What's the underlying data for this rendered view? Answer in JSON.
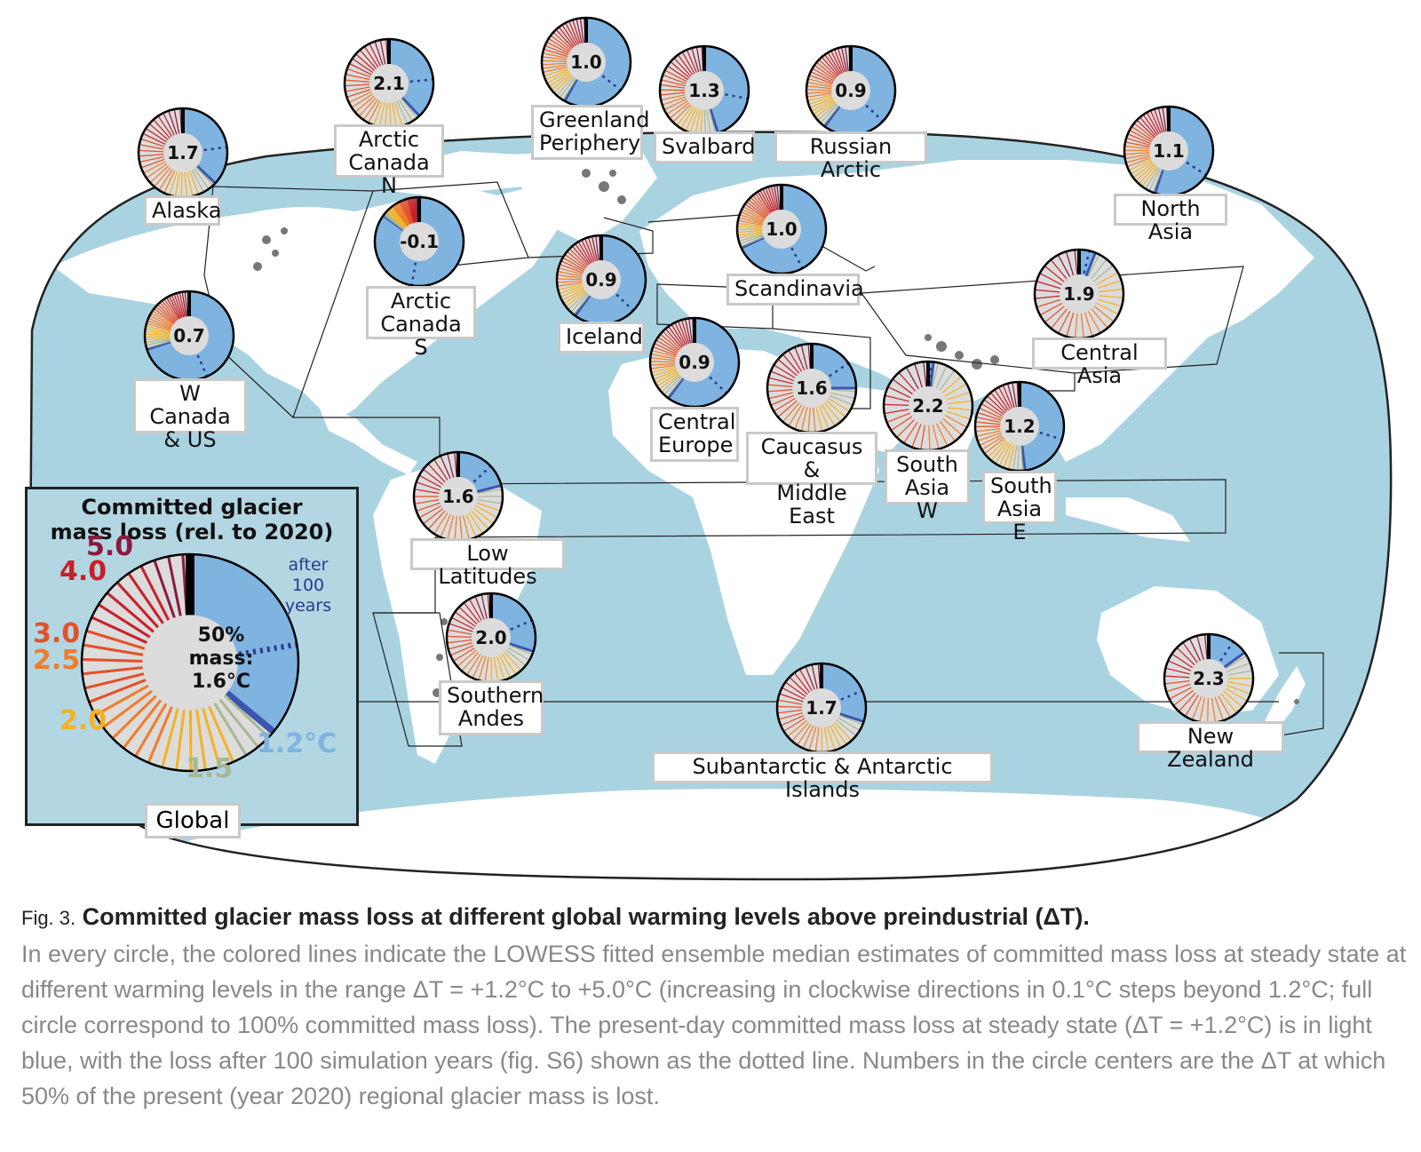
{
  "legend": {
    "title": "Committed glacier\nmass loss (rel. to 2020)",
    "center_text": "50%\nmass:\n1.6°C",
    "after_note": "after\n100\nyears",
    "levels": [
      {
        "label": "5.0",
        "color": "#8b1a3f"
      },
      {
        "label": "4.0",
        "color": "#c8202a"
      },
      {
        "label": "3.0",
        "color": "#e2512a"
      },
      {
        "label": "2.5",
        "color": "#ef7d2b"
      },
      {
        "label": "2.0",
        "color": "#f2b224"
      },
      {
        "label": "1.5",
        "color": "#a8b894"
      },
      {
        "label": "1.2°C",
        "color": "#7fb3e0"
      }
    ],
    "global_label": "Global",
    "global_value": 1.6
  },
  "regions": [
    {
      "name": "Alaska",
      "value": "1.7",
      "committed_1_2C_fraction": 0.37
    },
    {
      "name": "Arctic\nCanada N",
      "value": "2.1",
      "committed_1_2C_fraction": 0.38
    },
    {
      "name": "Greenland\nPeriphery",
      "value": "1.0",
      "committed_1_2C_fraction": 0.58
    },
    {
      "name": "Svalbard",
      "value": "1.3",
      "committed_1_2C_fraction": 0.45
    },
    {
      "name": "Russian Arctic",
      "value": "0.9",
      "committed_1_2C_fraction": 0.6
    },
    {
      "name": "North Asia",
      "value": "1.1",
      "committed_1_2C_fraction": 0.55
    },
    {
      "name": "Arctic\nCanada S",
      "value": "-0.1",
      "committed_1_2C_fraction": 0.85
    },
    {
      "name": "Iceland",
      "value": "0.9",
      "committed_1_2C_fraction": 0.6
    },
    {
      "name": "Scandinavia",
      "value": "1.0",
      "committed_1_2C_fraction": 0.68
    },
    {
      "name": "W Canada\n& US",
      "value": "0.7",
      "committed_1_2C_fraction": 0.7
    },
    {
      "name": "Central\nEurope",
      "value": "0.9",
      "committed_1_2C_fraction": 0.6
    },
    {
      "name": "Caucasus &\nMiddle East",
      "value": "1.6",
      "committed_1_2C_fraction": 0.25
    },
    {
      "name": "Central Asia",
      "value": "1.9",
      "committed_1_2C_fraction": 0.06
    },
    {
      "name": "South\nAsia W",
      "value": "2.2",
      "committed_1_2C_fraction": 0.02
    },
    {
      "name": "South\nAsia E",
      "value": "1.2",
      "committed_1_2C_fraction": 0.48
    },
    {
      "name": "Low Latitudes",
      "value": "1.6",
      "committed_1_2C_fraction": 0.21
    },
    {
      "name": "Southern\nAndes",
      "value": "2.0",
      "committed_1_2C_fraction": 0.3
    },
    {
      "name": "Subantarctic & Antarctic Islands",
      "value": "1.7",
      "committed_1_2C_fraction": 0.3
    },
    {
      "name": "New Zealand",
      "value": "2.3",
      "committed_1_2C_fraction": 0.15
    }
  ],
  "caption": {
    "fig_num": "Fig. 3.",
    "title": "Committed glacier mass loss at different global warming levels above preindustrial (ΔT).",
    "body": "In every circle, the colored lines indicate the LOWESS fitted ensemble median estimates of committed mass loss at steady state at different warming levels in the range ΔT = +1.2°C to +5.0°C (increasing in clockwise directions in 0.1°C steps beyond 1.2°C; full circle correspond to 100% committed mass loss). The present-day committed mass loss at steady state (ΔT = +1.2°C) is in light blue, with the loss after 100 simulation years (fig. S6) shown as the dotted line. Numbers in the circle centers are the ΔT at which 50% of the present (year 2020) regional glacier mass is lost."
  },
  "colors": {
    "ocean": "#a9d3e1",
    "land": "#ffffff",
    "glacier": "#777777",
    "committed_fill": "#7fb3e0",
    "remaining_fill": "#dcdcdc",
    "after_100yr_line": "#2a3a8c"
  }
}
